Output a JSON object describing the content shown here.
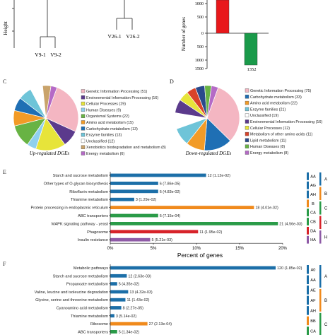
{
  "panel_a": {
    "ylabel": "Height",
    "leaves": [
      "V9-1",
      "V9-2",
      "V26-1",
      "V26-2"
    ]
  },
  "panel_b": {
    "ylabel": "Number of genes",
    "ticks": [
      "1000",
      "500",
      "0",
      "500",
      "1000",
      "1500"
    ],
    "down_value_label": "1352",
    "colors": {
      "up": "#e8181b",
      "down": "#1a9a4a"
    }
  },
  "panel_c": {
    "letter": "C",
    "caption": "Up-regulated DGEs",
    "legend": [
      {
        "text": "Genetic Information Processing (51)",
        "color": "#f4b6c2"
      },
      {
        "text": "Environmental Information Processing (16)",
        "color": "#5b3a8c"
      },
      {
        "text": "Cellular Processes (29)",
        "color": "#e7e43a"
      },
      {
        "text": "Human Diseases (9)",
        "color": "#8fd0ee"
      },
      {
        "text": "Organismal Systems (22)",
        "color": "#68b344"
      },
      {
        "text": "Amino acid metabolism (15)",
        "color": "#f29b27"
      },
      {
        "text": "Carbohydrate metabolism (13)",
        "color": "#1f6fb4"
      },
      {
        "text": "Enzyme families (13)",
        "color": "#6ec4d8"
      },
      {
        "text": "Unclassified (12)",
        "color": "#ffffff"
      },
      {
        "text": "Xenobiotics biodegradation and metabolism (8)",
        "color": "#c9a36b"
      },
      {
        "text": "Energy metabolism (6)",
        "color": "#b56ac6"
      }
    ],
    "values": [
      51,
      16,
      29,
      9,
      22,
      15,
      13,
      13,
      12,
      8,
      6
    ]
  },
  "panel_d": {
    "letter": "D",
    "caption": "Down-regulated DGEs",
    "legend": [
      {
        "text": "Genetic Information Processing (75)",
        "color": "#f4b6c2"
      },
      {
        "text": "Carbohydrate metabolism (33)",
        "color": "#1f6fb4"
      },
      {
        "text": "Amino acid metabolism (22)",
        "color": "#f29b27"
      },
      {
        "text": "Enzyme families (21)",
        "color": "#6ec4d8"
      },
      {
        "text": "Unclassified (19)",
        "color": "#ffffff"
      },
      {
        "text": "Environmental Information Processing (16)",
        "color": "#5b3a8c"
      },
      {
        "text": "Cellular Processes (12)",
        "color": "#e7e43a"
      },
      {
        "text": "Metabolism of other amino acids (11)",
        "color": "#d8432a"
      },
      {
        "text": "Lipid metabolism (11)",
        "color": "#2a4a8c"
      },
      {
        "text": "Human Diseases (8)",
        "color": "#68b344"
      },
      {
        "text": "Energy metabolism (8)",
        "color": "#b56ac6"
      }
    ],
    "values": [
      75,
      33,
      22,
      21,
      19,
      16,
      12,
      11,
      11,
      8,
      8
    ]
  },
  "panel_e": {
    "letter": "E",
    "xlabel": "Percent of genes",
    "ticks": [
      "0%",
      "5%",
      "10%",
      "15%",
      "20%"
    ],
    "rows": [
      {
        "name": "Starch and sucrose metabolism",
        "value": 12,
        "label": "12 (1.12e-02)",
        "color": "#1c6fa8"
      },
      {
        "name": "Other types of O-glycan biosynthesis",
        "value": 6,
        "label": "6 (7.86e-05)",
        "color": "#1c6fa8"
      },
      {
        "name": "Riboflavin metabolism",
        "value": 6,
        "label": "6 (4.83e-02)",
        "color": "#1c6fa8"
      },
      {
        "name": "Thiamine metabolism",
        "value": 3,
        "label": "3 (1.29e-02)",
        "color": "#1c6fa8"
      },
      {
        "name": "Protein processing in endoplasmic reticulum",
        "value": 18,
        "label": "18 (4.01e-02)",
        "color": "#f08a1c"
      },
      {
        "name": "ABC transporters",
        "value": 6,
        "label": "6 (7.15e-04)",
        "color": "#2a9b48"
      },
      {
        "name": "MAPK signaling pathway - yeast",
        "value": 21,
        "label": "21 (4.56e-03)",
        "color": "#2a9b48"
      },
      {
        "name": "Phagosome",
        "value": 11,
        "label": "11 (1.95e-02)",
        "color": "#d7232a"
      },
      {
        "name": "Insulin resistance",
        "value": 5,
        "label": "5 (5.21e-03)",
        "color": "#8e5aa6"
      }
    ],
    "subgroups": [
      {
        "code": "AA",
        "color": "#1c6fa8"
      },
      {
        "code": "AG",
        "color": "#1c6fa8"
      },
      {
        "code": "AH",
        "color": "#1c6fa8"
      },
      {
        "code": "B",
        "color": "#f08a1c"
      },
      {
        "code": "CA",
        "color": "#2a9b48"
      },
      {
        "code": "CB",
        "color": "#2a9b48"
      },
      {
        "code": "DA",
        "color": "#d7232a"
      },
      {
        "code": "HA",
        "color": "#8e5aa6"
      }
    ],
    "groups": [
      {
        "code": "A",
        "color": "#1c6fa8"
      },
      {
        "code": "B",
        "color": "#f08a1c"
      },
      {
        "code": "C",
        "color": "#2a9b48"
      },
      {
        "code": "D",
        "color": "#d7232a"
      },
      {
        "code": "H",
        "color": "#8e5aa6"
      }
    ]
  },
  "panel_f": {
    "letter": "F",
    "rows": [
      {
        "name": "Metabolic pathways",
        "value": 120,
        "label": "120 (1.85e-02)",
        "color": "#1c6fa8"
      },
      {
        "name": "Starch and sucrose metabolism",
        "value": 12,
        "label": "12 (2.63e-03)",
        "color": "#1c6fa8"
      },
      {
        "name": "Propanoate metabolism",
        "value": 5,
        "label": "5 (4.35e-02)",
        "color": "#1c6fa8"
      },
      {
        "name": "Valine, leucine and isoleucine degradation",
        "value": 13,
        "label": "13 (4.32e-03)",
        "color": "#1c6fa8"
      },
      {
        "name": "Glycine, serine and threonine metabolism",
        "value": 11,
        "label": "11 (1.43e-02)",
        "color": "#1c6fa8"
      },
      {
        "name": "Cyanoamino acid metabolism",
        "value": 8,
        "label": "8 (2.27e-05)",
        "color": "#1c6fa8"
      },
      {
        "name": "Thiamine metabolism",
        "value": 3,
        "label": "3 (5.14e-02)",
        "color": "#1c6fa8"
      },
      {
        "name": "Ribosome",
        "value": 27,
        "label": "27 (2.13e-04)",
        "color": "#f08a1c"
      },
      {
        "name": "ABC transporters",
        "value": 5,
        "label": "5 (1.34e-02)",
        "color": "#2a9b48"
      }
    ],
    "subgroups": [
      {
        "code": "A0",
        "color": "#1c6fa8"
      },
      {
        "code": "AA",
        "color": "#1c6fa8"
      },
      {
        "code": "AE",
        "color": "#1c6fa8"
      },
      {
        "code": "AF",
        "color": "#1c6fa8"
      },
      {
        "code": "AH",
        "color": "#1c6fa8"
      },
      {
        "code": "BB",
        "color": "#f08a1c"
      },
      {
        "code": "CA",
        "color": "#2a9b48"
      }
    ],
    "groups": [
      {
        "code": "A",
        "color": "#1c6fa8"
      },
      {
        "code": "B",
        "color": "#f08a1c"
      },
      {
        "code": "C",
        "color": "#2a9b48"
      }
    ]
  }
}
